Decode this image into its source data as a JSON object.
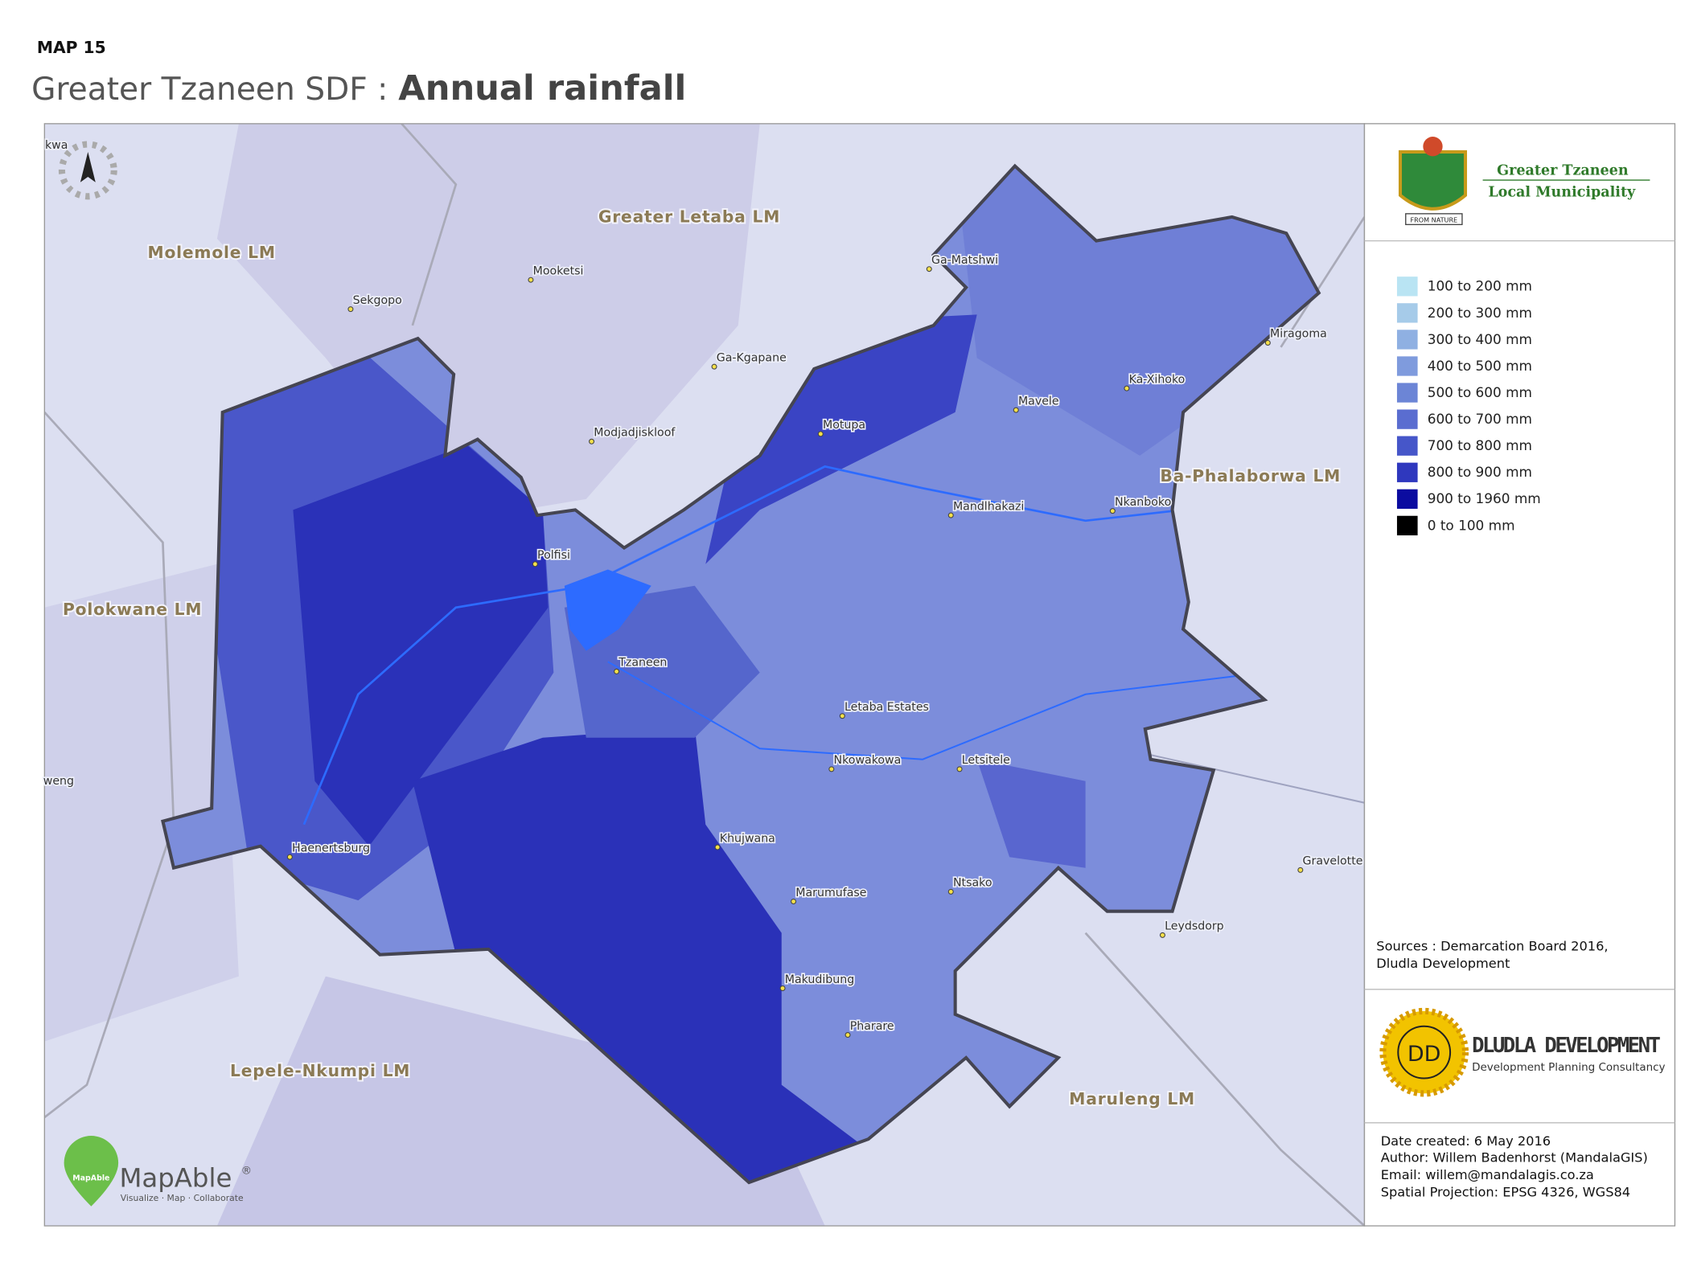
{
  "header": {
    "map_number": "MAP 15",
    "title_prefix": "Greater Tzaneen SDF :",
    "title": "Annual rainfall"
  },
  "regions": [
    "Molemole LM",
    "Greater Letaba LM",
    "Polokwane LM",
    "Ba-Phalaborwa LM",
    "Lepele-Nkumpi LM",
    "Maruleng LM",
    "kwa",
    "weng"
  ],
  "towns": [
    "Sekgopo",
    "Mooketsi",
    "Ga-Kgapane",
    "Modjadjiskloof",
    "Ga-Matshwi",
    "Miragoma",
    "Ka-Xihoko",
    "Mavele",
    "Motupa",
    "Mandlhakazi",
    "Nkanboko",
    "Polfisi",
    "Tzaneen",
    "Letaba Estates",
    "Nkowakowa",
    "Letsitele",
    "Haenertsburg",
    "Khujwana",
    "Marumufase",
    "Ntsako",
    "Gravelotte",
    "Leydsdorp",
    "Makudibung",
    "Pharare"
  ],
  "municipality_logo": {
    "line1": "Greater Tzaneen",
    "line2": "Local Municipality",
    "motto": "FROM NATURE"
  },
  "legend": [
    {
      "label": "100 to 200 mm",
      "color": "#b9e4f3"
    },
    {
      "label": "200 to 300 mm",
      "color": "#a6cbe9"
    },
    {
      "label": "300 to 400 mm",
      "color": "#8fb0e2"
    },
    {
      "label": "400 to 500 mm",
      "color": "#7f9bdd"
    },
    {
      "label": "500 to 600 mm",
      "color": "#6c85d6"
    },
    {
      "label": "600 to 700 mm",
      "color": "#5a6dd0"
    },
    {
      "label": "700 to 800 mm",
      "color": "#4656c9"
    },
    {
      "label": "800 to 900 mm",
      "color": "#2f38be"
    },
    {
      "label": "900 to 1960 mm",
      "color": "#0b0ca0"
    },
    {
      "label": "0 to 100 mm",
      "color": "#000000"
    }
  ],
  "sources": [
    "Sources : Demarcation Board 2016,",
    "Dludla Development"
  ],
  "dludla_logo": {
    "initials": "DD",
    "name": "DLUDLA DEVELOPMENT",
    "tagline": "Development  Planning Consultancy"
  },
  "mapable": {
    "name": "MapAble",
    "mark": "®",
    "tagline": "Visualize · Map · Collaborate",
    "badge": "MapAble"
  },
  "metadata": [
    "Date created:  6 May 2016",
    "Author: Willem Badenhorst (MandalaGIS)",
    "Email: willem@mandalagis.co.za",
    "Spatial Projection:  EPSG 4326, WGS84"
  ]
}
